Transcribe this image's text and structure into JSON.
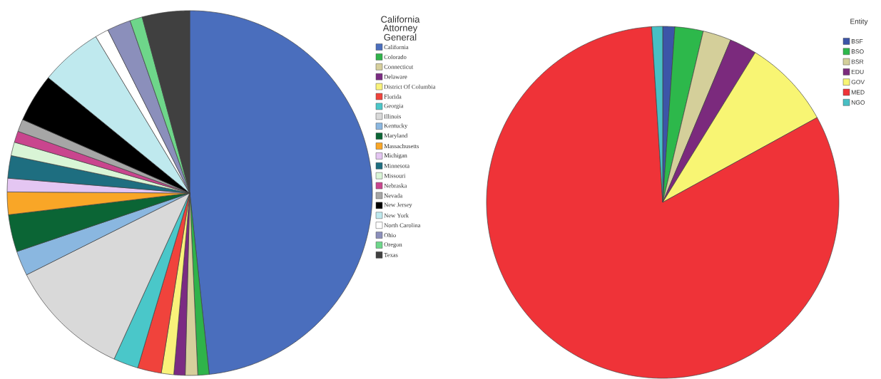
{
  "chart_data": [
    {
      "type": "pie",
      "legend_title": "California Attorney General",
      "legend": "right",
      "categories": [
        "California",
        "Colorado",
        "Connecticut",
        "Delaware",
        "District Of Columbia",
        "Florida",
        "Georgia",
        "Illinois",
        "Kentucky",
        "Maryland",
        "Massachusetts",
        "Michigan",
        "Minnesota",
        "Missouri",
        "Nebraska",
        "Nevada",
        "New Jersey",
        "New York",
        "North Carolina",
        "Ohio",
        "Oregon",
        "Texas"
      ],
      "values": [
        48.3,
        1.0,
        1.1,
        1.0,
        1.1,
        2.1,
        2.2,
        10.8,
        2.2,
        3.3,
        2.0,
        1.2,
        2.0,
        1.2,
        1.0,
        1.1,
        4.3,
        5.5,
        1.2,
        2.1,
        1.1,
        4.2
      ],
      "colors": [
        "#4a6ebd",
        "#2fb34a",
        "#d6cf9c",
        "#7b2b83",
        "#f9f27a",
        "#f0433c",
        "#4ac7c9",
        "#d9d9d9",
        "#8ab7e0",
        "#0b6535",
        "#f9a627",
        "#e4c6f2",
        "#1e6e80",
        "#d9f5d6",
        "#c9458e",
        "#a6a6a6",
        "#000000",
        "#bfe9ee",
        "#ffffff",
        "#8b8fbb",
        "#6ed68a",
        "#404040"
      ]
    },
    {
      "type": "pie",
      "legend_title": "Entity",
      "legend": "right",
      "categories": [
        "BSF",
        "BSO",
        "BSR",
        "EDU",
        "GOV",
        "MED",
        "NGO"
      ],
      "values": [
        1.1,
        2.6,
        2.6,
        2.5,
        8.2,
        82.0,
        1.0
      ],
      "colors": [
        "#3c55a8",
        "#2db84b",
        "#d4cf9a",
        "#7b2a7d",
        "#f8f573",
        "#ef3338",
        "#48bfc4"
      ]
    }
  ]
}
